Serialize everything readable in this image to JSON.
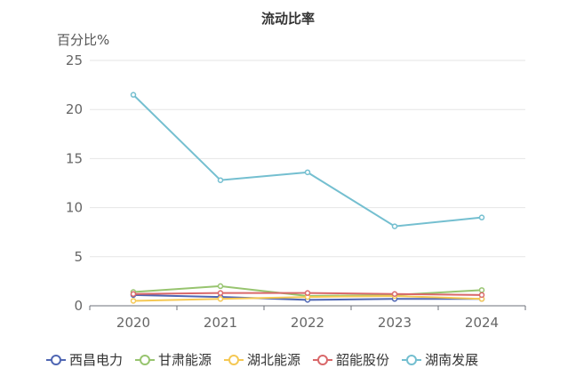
{
  "chart_data": {
    "type": "line",
    "title": "流动比率",
    "ylabel": "百分比%",
    "xlabel": "",
    "categories": [
      "2020",
      "2021",
      "2022",
      "2023",
      "2024"
    ],
    "ylim": [
      0,
      25
    ],
    "yticks": [
      0,
      5,
      10,
      15,
      20,
      25
    ],
    "grid": true,
    "legend_position": "bottom",
    "series": [
      {
        "name": "西昌电力",
        "color": "#4f66b3",
        "values": [
          1.1,
          0.9,
          0.6,
          0.7,
          0.7
        ]
      },
      {
        "name": "甘肃能源",
        "color": "#97c46f",
        "values": [
          1.4,
          2.0,
          1.0,
          1.1,
          1.6
        ]
      },
      {
        "name": "湖北能源",
        "color": "#f5c854",
        "values": [
          0.5,
          0.7,
          0.9,
          1.0,
          0.7
        ]
      },
      {
        "name": "韶能股份",
        "color": "#d9686a",
        "values": [
          1.2,
          1.3,
          1.3,
          1.2,
          1.1
        ]
      },
      {
        "name": "湖南发展",
        "color": "#74bfd0",
        "values": [
          21.5,
          12.8,
          13.6,
          8.1,
          9.0
        ]
      }
    ]
  }
}
